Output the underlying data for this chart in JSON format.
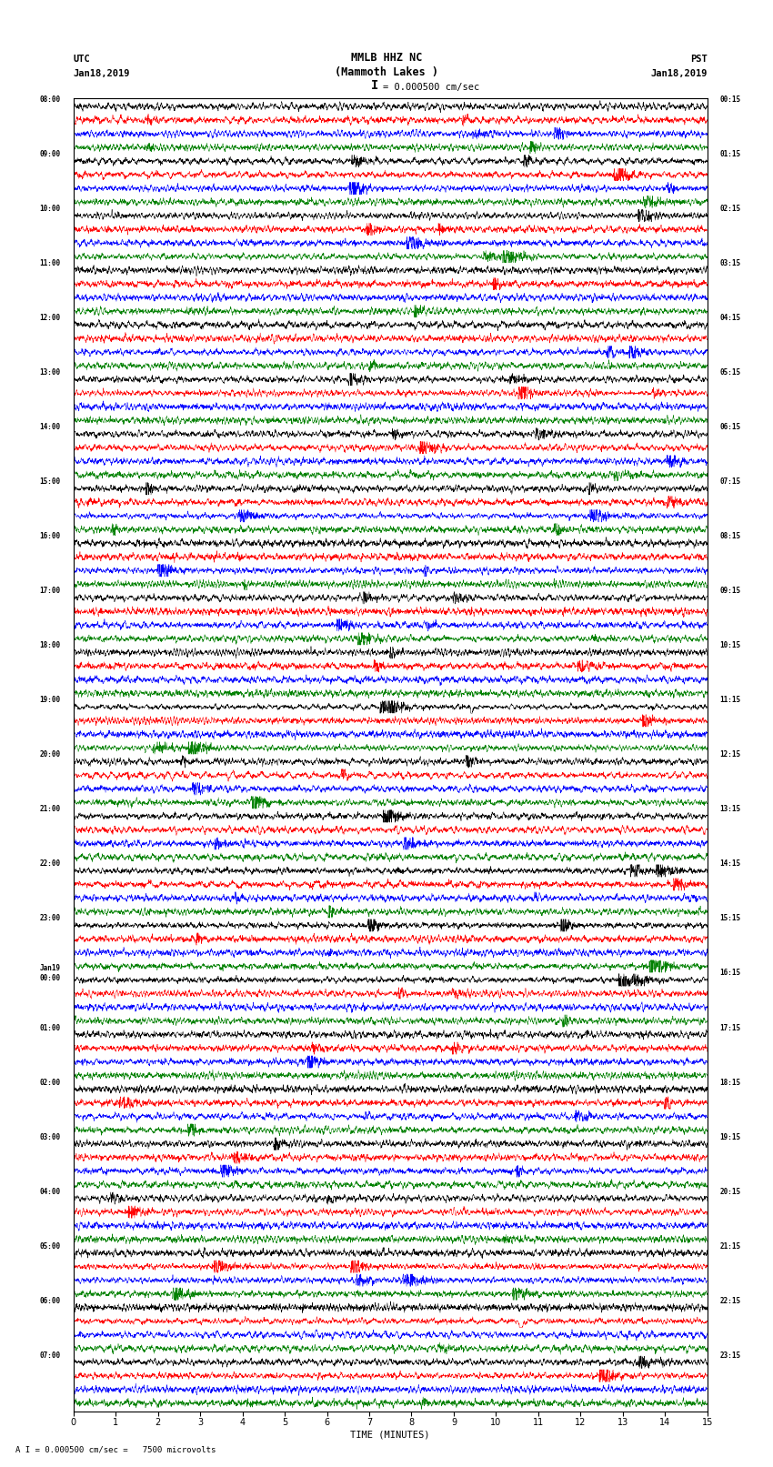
{
  "title_line1": "MMLB HHZ NC",
  "title_line2": "(Mammoth Lakes )",
  "scale_label": "I = 0.000500 cm/sec",
  "bottom_label": "A I = 0.000500 cm/sec =   7500 microvolts",
  "xlabel": "TIME (MINUTES)",
  "utc_header": "UTC",
  "utc_date": "Jan18,2019",
  "pst_header": "PST",
  "pst_date": "Jan18,2019",
  "left_times": [
    "08:00",
    "",
    "",
    "",
    "09:00",
    "",
    "",
    "",
    "10:00",
    "",
    "",
    "",
    "11:00",
    "",
    "",
    "",
    "12:00",
    "",
    "",
    "",
    "13:00",
    "",
    "",
    "",
    "14:00",
    "",
    "",
    "",
    "15:00",
    "",
    "",
    "",
    "16:00",
    "",
    "",
    "",
    "17:00",
    "",
    "",
    "",
    "18:00",
    "",
    "",
    "",
    "19:00",
    "",
    "",
    "",
    "20:00",
    "",
    "",
    "",
    "21:00",
    "",
    "",
    "",
    "22:00",
    "",
    "",
    "",
    "23:00",
    "",
    "",
    "",
    "Jan19\n00:00",
    "",
    "",
    "",
    "01:00",
    "",
    "",
    "",
    "02:00",
    "",
    "",
    "",
    "03:00",
    "",
    "",
    "",
    "04:00",
    "",
    "",
    "",
    "05:00",
    "",
    "",
    "",
    "06:00",
    "",
    "",
    "",
    "07:00",
    "",
    "",
    ""
  ],
  "right_times": [
    "00:15",
    "",
    "",
    "",
    "01:15",
    "",
    "",
    "",
    "02:15",
    "",
    "",
    "",
    "03:15",
    "",
    "",
    "",
    "04:15",
    "",
    "",
    "",
    "05:15",
    "",
    "",
    "",
    "06:15",
    "",
    "",
    "",
    "07:15",
    "",
    "",
    "",
    "08:15",
    "",
    "",
    "",
    "09:15",
    "",
    "",
    "",
    "10:15",
    "",
    "",
    "",
    "11:15",
    "",
    "",
    "",
    "12:15",
    "",
    "",
    "",
    "13:15",
    "",
    "",
    "",
    "14:15",
    "",
    "",
    "",
    "15:15",
    "",
    "",
    "",
    "16:15",
    "",
    "",
    "",
    "17:15",
    "",
    "",
    "",
    "18:15",
    "",
    "",
    "",
    "19:15",
    "",
    "",
    "",
    "20:15",
    "",
    "",
    "",
    "21:15",
    "",
    "",
    "",
    "22:15",
    "",
    "",
    "",
    "23:15",
    "",
    "",
    ""
  ],
  "trace_colors": [
    "black",
    "red",
    "blue",
    "green"
  ],
  "n_rows": 96,
  "time_minutes": 15,
  "fig_width": 8.5,
  "fig_height": 16.13,
  "bg_color": "white",
  "xlim": [
    0,
    15
  ],
  "xticks": [
    0,
    1,
    2,
    3,
    4,
    5,
    6,
    7,
    8,
    9,
    10,
    11,
    12,
    13,
    14,
    15
  ]
}
